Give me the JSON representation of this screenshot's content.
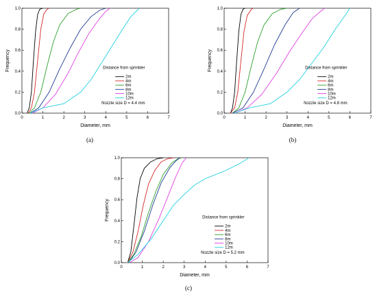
{
  "figure": {
    "panels": [
      {
        "label": "(a)",
        "label_letter": "a"
      },
      {
        "label": "(b)",
        "label_letter": "b"
      },
      {
        "label": "(c)",
        "label_letter": "c"
      }
    ]
  },
  "chart_data": [
    {
      "type": "line",
      "panel": "(a)",
      "xlabel": "Diameter, mm",
      "ylabel": "Frequency",
      "xlim": [
        0,
        7
      ],
      "ylim": [
        0,
        1.0
      ],
      "xticks": [
        "0",
        "1",
        "2",
        "3",
        "4",
        "5",
        "6",
        "7"
      ],
      "yticks": [
        "0.0",
        "0.2",
        "0.4",
        "0.6",
        "0.8",
        "1.0"
      ],
      "grid": false,
      "legend_title": "Distance from sprinkler",
      "legend_position": "right",
      "note": "Nozzle size D = 4.4 mm",
      "series": [
        {
          "name": "2m",
          "color": "#000000",
          "x": [
            0.25,
            0.35,
            0.45,
            0.55,
            0.65,
            0.75,
            0.85,
            1.0
          ],
          "y": [
            0.0,
            0.05,
            0.2,
            0.5,
            0.78,
            0.94,
            0.99,
            1.0
          ]
        },
        {
          "name": "4m",
          "color": "#d62728",
          "x": [
            0.3,
            0.45,
            0.6,
            0.75,
            0.9,
            1.05,
            1.2,
            1.3
          ],
          "y": [
            0.0,
            0.05,
            0.2,
            0.5,
            0.8,
            0.95,
            0.99,
            1.0
          ]
        },
        {
          "name": "6m",
          "color": "#2ca02c",
          "x": [
            0.35,
            0.6,
            0.9,
            1.2,
            1.5,
            1.8,
            2.2,
            2.6,
            2.8
          ],
          "y": [
            0.0,
            0.05,
            0.2,
            0.45,
            0.68,
            0.84,
            0.95,
            0.99,
            1.0
          ]
        },
        {
          "name": "8m",
          "color": "#1f3a93",
          "x": [
            0.4,
            0.8,
            1.3,
            1.8,
            2.3,
            2.8,
            3.3,
            3.7,
            4.0
          ],
          "y": [
            0.0,
            0.05,
            0.2,
            0.42,
            0.62,
            0.8,
            0.92,
            0.98,
            1.0
          ]
        },
        {
          "name": "10m",
          "color": "#e040e0",
          "x": [
            0.5,
            1.0,
            1.6,
            2.2,
            2.7,
            3.2,
            3.7,
            4.0,
            4.2
          ],
          "y": [
            0.0,
            0.05,
            0.18,
            0.38,
            0.58,
            0.76,
            0.9,
            0.97,
            1.0
          ]
        },
        {
          "name": "12m",
          "color": "#22d0e0",
          "x": [
            0.4,
            1.0,
            2.0,
            2.8,
            3.3,
            3.8,
            4.3,
            4.8,
            5.2,
            5.6
          ],
          "y": [
            0.0,
            0.05,
            0.09,
            0.2,
            0.32,
            0.48,
            0.64,
            0.8,
            0.92,
            1.0
          ]
        }
      ]
    },
    {
      "type": "line",
      "panel": "(b)",
      "xlabel": "Diameter, mm",
      "ylabel": "Frequency",
      "xlim": [
        0,
        7
      ],
      "ylim": [
        0,
        1.0
      ],
      "xticks": [
        "0",
        "1",
        "2",
        "3",
        "4",
        "5",
        "6",
        "7"
      ],
      "yticks": [
        "0.0",
        "0.2",
        "0.4",
        "0.6",
        "0.8",
        "1.0"
      ],
      "grid": false,
      "legend_title": "Distance from sprinkler",
      "legend_position": "right",
      "note": "Nozzle size D = 4.8 mm",
      "series": [
        {
          "name": "2m",
          "color": "#000000",
          "x": [
            0.3,
            0.4,
            0.5,
            0.6,
            0.7,
            0.8,
            0.9,
            1.0
          ],
          "y": [
            0.0,
            0.05,
            0.2,
            0.5,
            0.78,
            0.94,
            0.99,
            1.0
          ]
        },
        {
          "name": "4m",
          "color": "#d62728",
          "x": [
            0.3,
            0.5,
            0.65,
            0.8,
            0.95,
            1.1,
            1.3,
            1.4
          ],
          "y": [
            0.0,
            0.05,
            0.2,
            0.5,
            0.78,
            0.93,
            0.99,
            1.0
          ]
        },
        {
          "name": "6m",
          "color": "#2ca02c",
          "x": [
            0.4,
            0.7,
            1.0,
            1.3,
            1.6,
            1.9,
            2.3,
            2.7,
            3.0
          ],
          "y": [
            0.0,
            0.05,
            0.2,
            0.45,
            0.68,
            0.84,
            0.95,
            0.99,
            1.0
          ]
        },
        {
          "name": "8m",
          "color": "#1f3a93",
          "x": [
            0.4,
            0.9,
            1.4,
            1.9,
            2.4,
            2.9,
            3.3,
            3.6
          ],
          "y": [
            0.0,
            0.05,
            0.2,
            0.42,
            0.65,
            0.84,
            0.96,
            1.0
          ]
        },
        {
          "name": "10m",
          "color": "#e040e0",
          "x": [
            0.5,
            1.1,
            1.8,
            2.5,
            3.1,
            3.7,
            4.2,
            4.6,
            4.8
          ],
          "y": [
            0.0,
            0.05,
            0.18,
            0.38,
            0.58,
            0.76,
            0.9,
            0.97,
            1.0
          ]
        },
        {
          "name": "12m",
          "color": "#22d0e0",
          "x": [
            0.5,
            1.2,
            2.2,
            3.0,
            3.6,
            4.2,
            4.8,
            5.3,
            5.8,
            6.0
          ],
          "y": [
            0.0,
            0.05,
            0.09,
            0.2,
            0.32,
            0.48,
            0.64,
            0.8,
            0.94,
            1.0
          ]
        }
      ]
    },
    {
      "type": "line",
      "panel": "(c)",
      "xlabel": "Diameter, mm",
      "ylabel": "Frequency",
      "xlim": [
        0,
        7
      ],
      "ylim": [
        0,
        1.0
      ],
      "xticks": [
        "0",
        "1",
        "2",
        "3",
        "4",
        "5",
        "6",
        "7"
      ],
      "yticks": [
        "0.0",
        "0.2",
        "0.4",
        "0.6",
        "0.8",
        "1.0"
      ],
      "grid": false,
      "legend_title": "Distance from sprinkler",
      "legend_position": "right",
      "note": "Nozzle size D = 5.2 mm",
      "series": [
        {
          "name": "2m",
          "color": "#000000",
          "x": [
            0.3,
            0.45,
            0.6,
            0.75,
            0.9,
            1.1,
            1.4,
            1.7,
            2.0
          ],
          "y": [
            0.0,
            0.1,
            0.35,
            0.62,
            0.8,
            0.9,
            0.96,
            0.99,
            1.0
          ]
        },
        {
          "name": "4m",
          "color": "#d62728",
          "x": [
            0.3,
            0.55,
            0.8,
            1.05,
            1.3,
            1.6,
            1.9,
            2.2,
            2.5
          ],
          "y": [
            0.0,
            0.1,
            0.3,
            0.55,
            0.75,
            0.88,
            0.96,
            0.99,
            1.0
          ]
        },
        {
          "name": "6m",
          "color": "#2ca02c",
          "x": [
            0.3,
            0.6,
            0.95,
            1.3,
            1.65,
            2.0,
            2.4,
            2.7,
            2.9
          ],
          "y": [
            0.0,
            0.08,
            0.25,
            0.48,
            0.68,
            0.84,
            0.95,
            0.99,
            1.0
          ]
        },
        {
          "name": "8m",
          "color": "#1f3a93",
          "x": [
            0.35,
            0.7,
            1.1,
            1.5,
            1.9,
            2.3,
            2.6,
            2.8
          ],
          "y": [
            0.0,
            0.1,
            0.3,
            0.55,
            0.76,
            0.9,
            0.97,
            1.0
          ]
        },
        {
          "name": "10m",
          "color": "#e040e0",
          "x": [
            0.4,
            0.8,
            1.3,
            1.8,
            2.2,
            2.6,
            2.9,
            3.1
          ],
          "y": [
            0.0,
            0.05,
            0.2,
            0.42,
            0.62,
            0.82,
            0.95,
            1.0
          ]
        },
        {
          "name": "12m",
          "color": "#22d0e0",
          "x": [
            0.3,
            0.8,
            1.4,
            2.0,
            2.5,
            3.0,
            3.5,
            4.0,
            5.0,
            5.6,
            6.1
          ],
          "y": [
            0.0,
            0.08,
            0.22,
            0.4,
            0.55,
            0.65,
            0.74,
            0.8,
            0.88,
            0.94,
            1.0
          ]
        }
      ]
    }
  ]
}
